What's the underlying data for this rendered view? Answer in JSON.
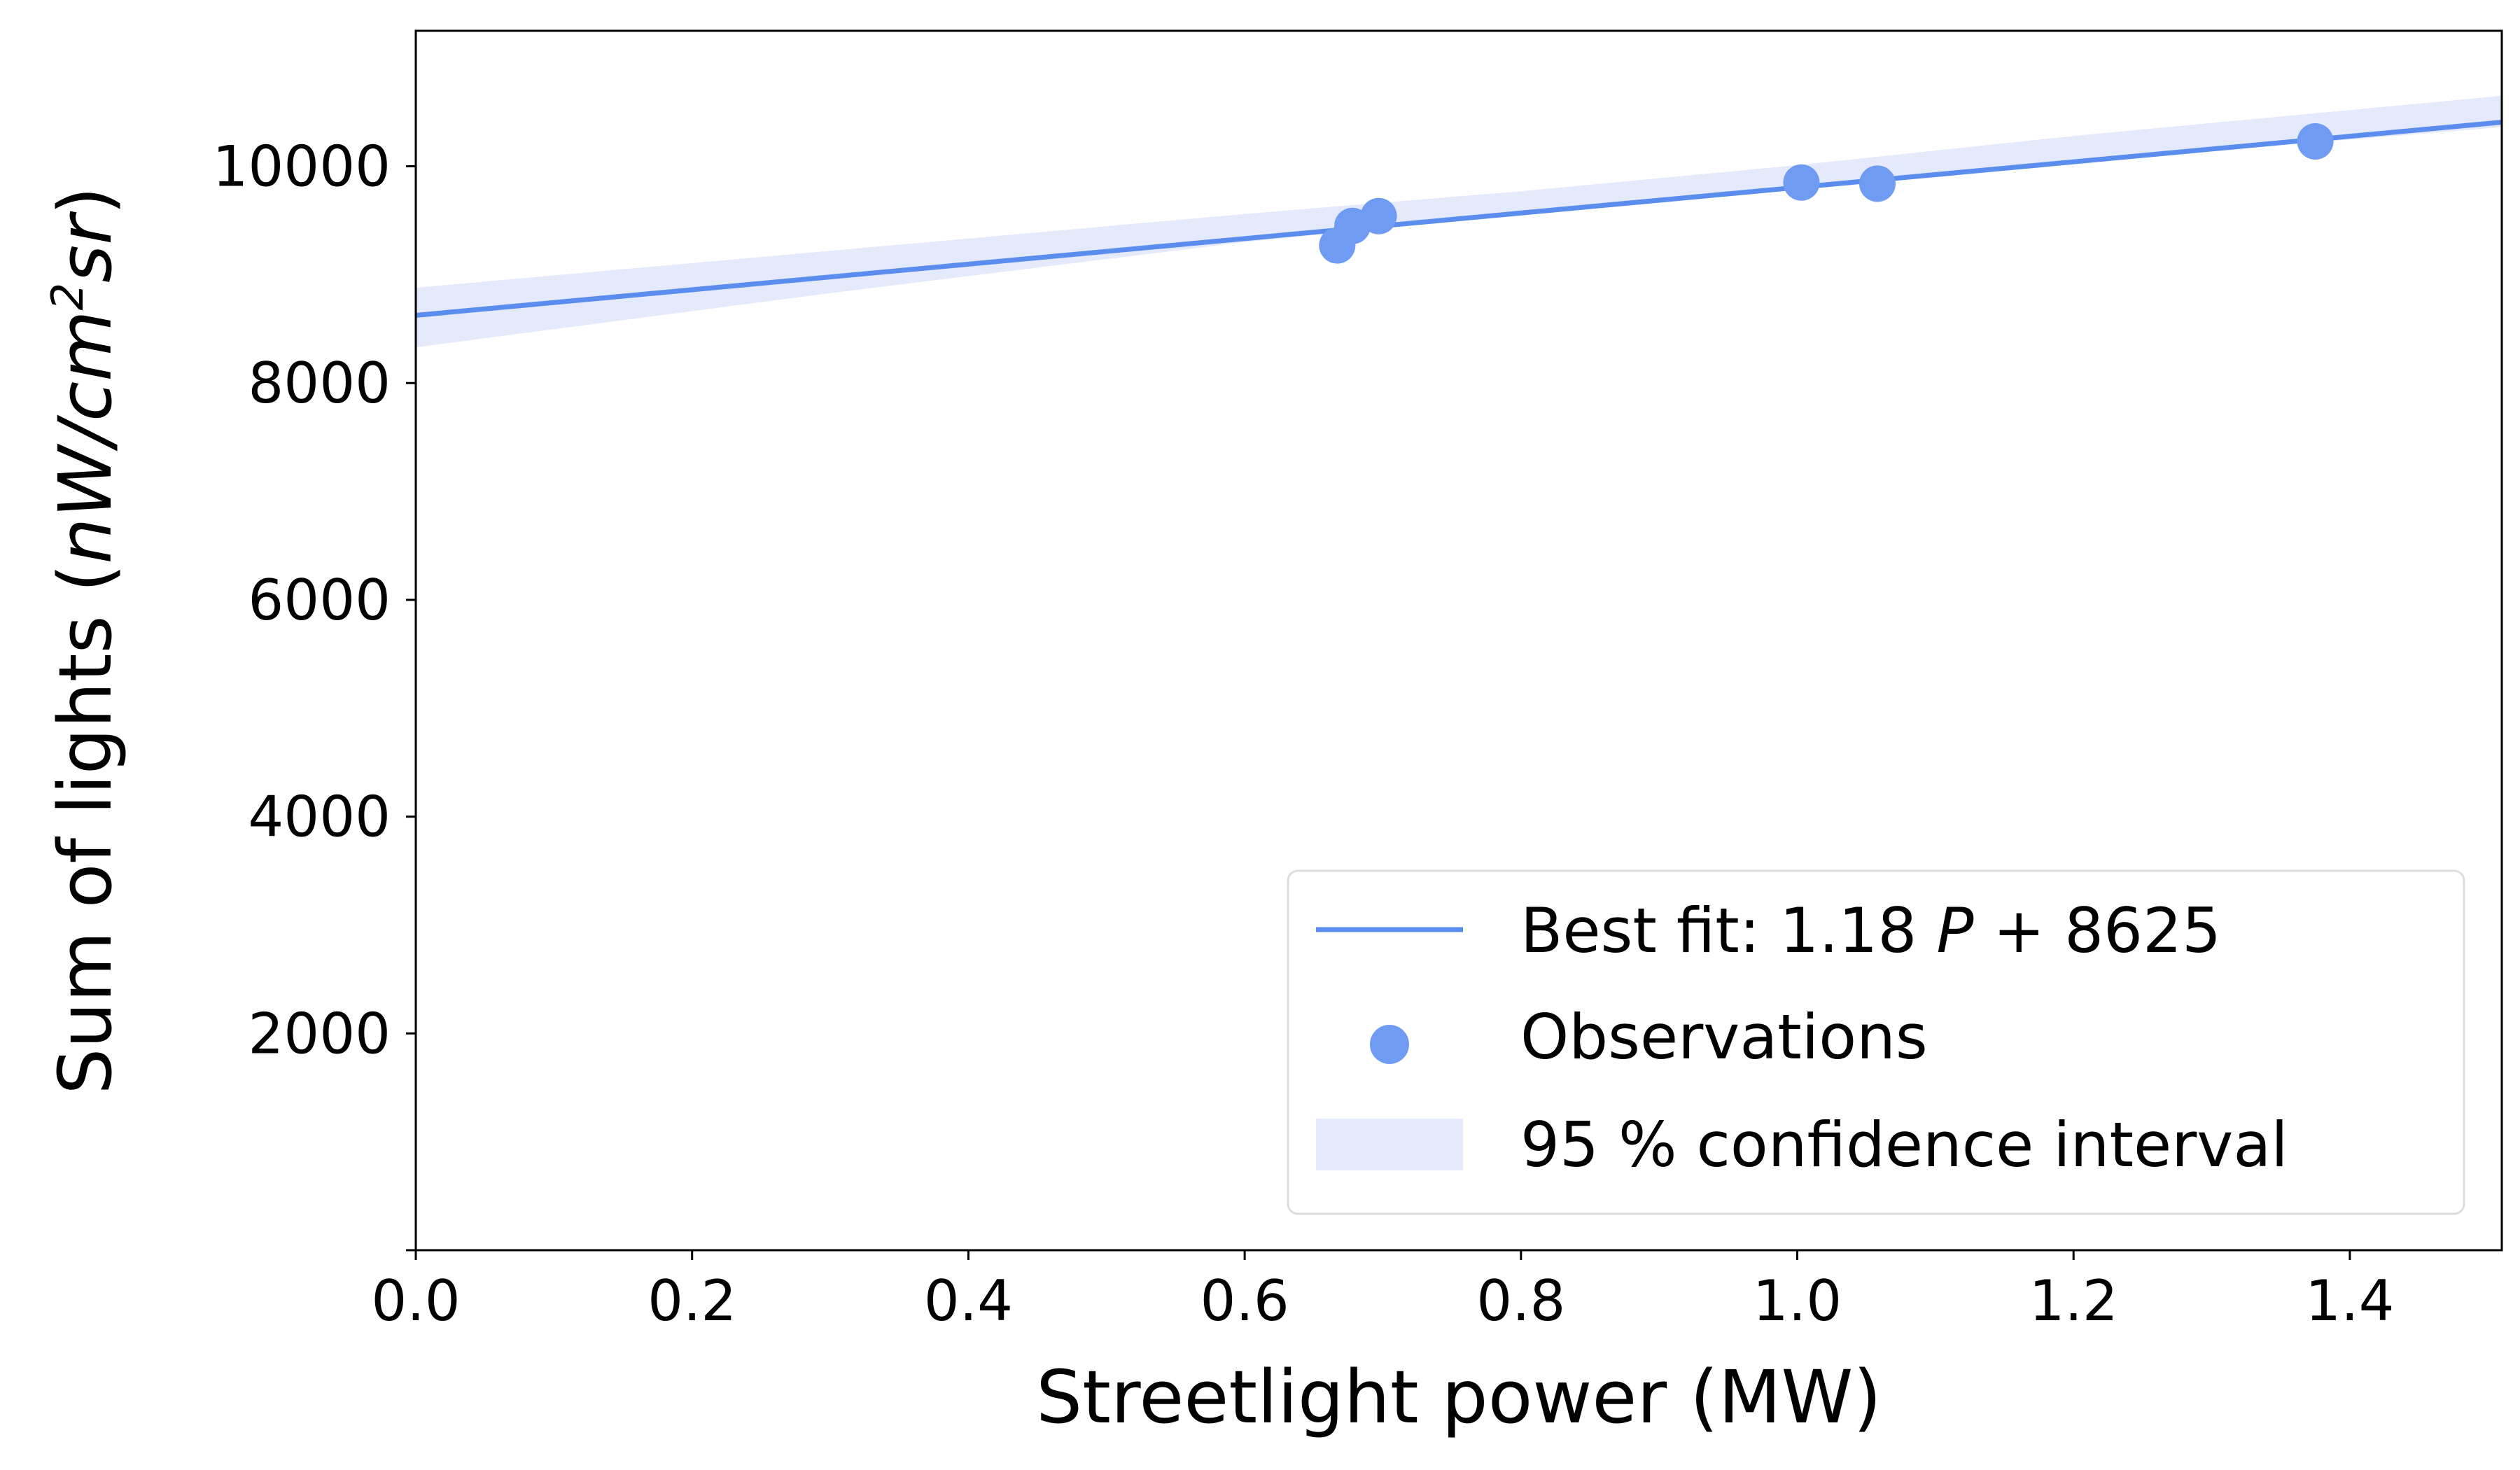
{
  "chart_data": {
    "type": "scatter",
    "xlabel": "Streetlight power (MW)",
    "ylabel": {
      "prefix": "Sum of lights (",
      "unit_a": "nW/cm",
      "unit_sup": "2",
      "unit_b": "sr",
      "suffix": ")"
    },
    "xlim": [
      0.0,
      1.51
    ],
    "ylim": [
      0,
      11250
    ],
    "x_ticks": [
      0.0,
      0.2,
      0.4,
      0.6,
      0.8,
      1.0,
      1.2,
      1.4
    ],
    "x_tick_labels": [
      "0.0",
      "0.2",
      "0.4",
      "0.6",
      "0.8",
      "1.0",
      "1.2",
      "1.4"
    ],
    "y_ticks": [
      2000,
      4000,
      6000,
      8000,
      10000
    ],
    "y_tick_labels": [
      "2000",
      "4000",
      "6000",
      "8000",
      "10000"
    ],
    "grid": false,
    "legend_position": "lower-right",
    "colors": {
      "fit_line": "#5b8def",
      "points": "#6f9bf2",
      "band": "#e4eafb"
    },
    "series": [
      {
        "name": "Observations",
        "kind": "points",
        "x": [
          0.667,
          0.678,
          0.697,
          1.003,
          1.058,
          1.375
        ],
        "y": [
          9270,
          9450,
          9540,
          9850,
          9840,
          10230
        ]
      }
    ],
    "fit": {
      "slope": 1.18,
      "intercept": 8625,
      "legend": {
        "prefix": "Best fit:  1.18 ",
        "var": "P",
        "suffix": " + 8625"
      }
    },
    "confidence_band": {
      "name": "95 % confidence interval",
      "x": [
        0.0,
        0.3,
        0.6,
        0.8,
        1.0,
        1.2,
        1.51
      ],
      "lower": [
        8330,
        8830,
        9300,
        9560,
        9810,
        10040,
        10360
      ],
      "upper": [
        8880,
        9220,
        9560,
        9770,
        10010,
        10280,
        10650
      ]
    }
  }
}
